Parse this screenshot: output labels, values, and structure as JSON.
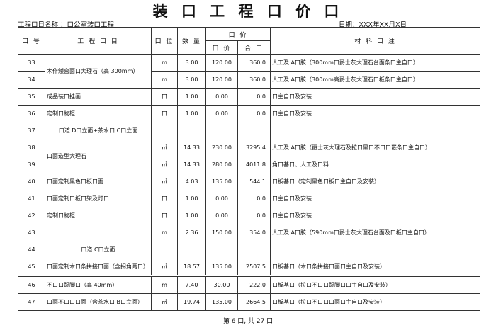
{
  "title": "装 口 工 程 口 价 口",
  "project_label": "工程口目名称 ：口公室装口工程",
  "date_label": "日期：XXX年XX月X日",
  "headers": {
    "seq": "口 号",
    "item": "工 程 口 目",
    "unit": "口 位",
    "qty": "数 量",
    "price_group": "口 价",
    "unit_price": "口 价",
    "total": "合 口",
    "notes": "材 料 口 注"
  },
  "rows": [
    {
      "no": "33",
      "item": "木作矮台面口大理石（高 300mm）",
      "unit": "m",
      "qty": "3.00",
      "price": "120.00",
      "total": "360.0",
      "note": "人工及 A口胶（300mm口爵士灰大理石台面条口主自口）"
    },
    {
      "no": "34",
      "item": "",
      "unit": "m",
      "qty": "3.00",
      "price": "120.00",
      "total": "360.0",
      "note": "人工及 A口胶（300mm高爵士灰大理石口板条口主自口）"
    },
    {
      "no": "35",
      "item": "成品装口挂画",
      "unit": "口",
      "qty": "1.00",
      "price": "0.00",
      "total": "0.0",
      "note": "口主自口及安装"
    },
    {
      "no": "36",
      "item": "定制口物柜",
      "unit": "口",
      "qty": "1.00",
      "price": "0.00",
      "total": "0.0",
      "note": "口主自口及安装"
    },
    {
      "no": "37",
      "item": "口道 D口立面+茶水口 C口立面",
      "unit": "",
      "qty": "",
      "price": "",
      "total": "",
      "note": ""
    },
    {
      "no": "38",
      "item": "口面造型大理石",
      "unit": "㎡",
      "qty": "14.33",
      "price": "230.00",
      "total": "3295.4",
      "note": "人工及 A口胶（爵士灰大理石及拉口黑口不口口嵌条口主自口）"
    },
    {
      "no": "39",
      "item": "",
      "unit": "㎡",
      "qty": "14.33",
      "price": "280.00",
      "total": "4011.8",
      "note": "角口基口、人工及口料"
    },
    {
      "no": "40",
      "item": "口面定制黑色口板口面",
      "unit": "㎡",
      "qty": "4.03",
      "price": "135.00",
      "total": "544.1",
      "note": "口板基口（定制黑色口板口主自口及安装）"
    },
    {
      "no": "41",
      "item": "口面定制口板口架及灯口",
      "unit": "口",
      "qty": "1.00",
      "price": "0.00",
      "total": "0.0",
      "note": "口主自口及安装"
    },
    {
      "no": "42",
      "item": "定制口物柜",
      "unit": "口",
      "qty": "1.00",
      "price": "0.00",
      "total": "0.0",
      "note": "口主自口及安装"
    },
    {
      "no": "43",
      "item": "",
      "unit": "m",
      "qty": "2.36",
      "price": "150.00",
      "total": "354.0",
      "note": "人工及 A口胶（590mm口爵士灰大理石台面及口板口主自口）"
    },
    {
      "no": "44",
      "item": "口道 C口立面",
      "unit": "",
      "qty": "",
      "price": "",
      "total": "",
      "note": ""
    },
    {
      "no": "45",
      "item": "口面定制木口条拼接口面（含拐角两口）",
      "unit": "㎡",
      "qty": "18.57",
      "price": "135.00",
      "total": "2507.5",
      "note": "口板基口（木口条拼接口面口主自口及安装）"
    },
    {
      "no": "46",
      "item": "不口口踢脚口（高 40mm）",
      "unit": "m",
      "qty": "7.40",
      "price": "30.00",
      "total": "222.0",
      "note": "口板基口（拉口不口口踢脚口口主自口及安装）"
    },
    {
      "no": "47",
      "item": "口面不口口口面（含茶水口 B口立面）",
      "unit": "㎡",
      "qty": "19.74",
      "price": "135.00",
      "total": "2664.5",
      "note": "口板基口（拉口不口口口面口主自口及安装）"
    }
  ],
  "footer": "第 6 口, 共 27 口"
}
